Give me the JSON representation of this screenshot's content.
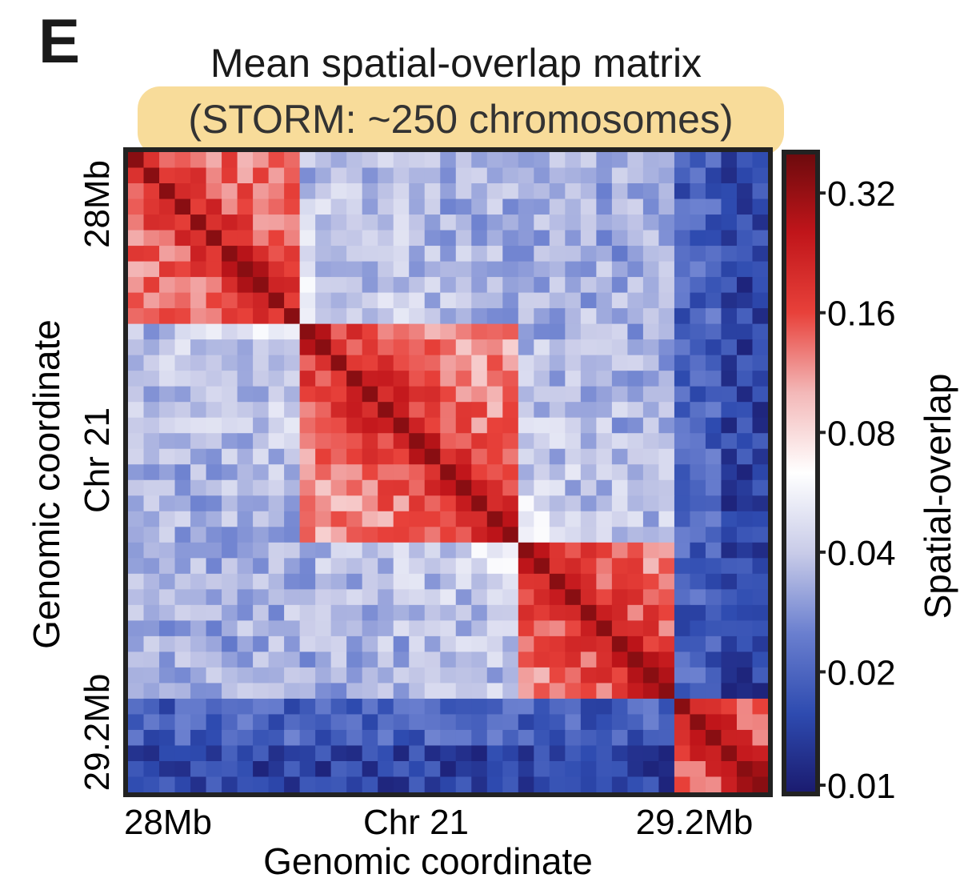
{
  "panel_label": "E",
  "chart_data": {
    "type": "heatmap",
    "title": "Mean spatial-overlap matrix",
    "subtitle": "(STORM: ~250 chromosomes)",
    "subtitle_highlight_color": "#f8dc9a",
    "xlabel": "Genomic coordinate",
    "ylabel": "Genomic coordinate",
    "x_tick_labels": [
      "28Mb",
      "Chr 21",
      "29.2Mb"
    ],
    "y_tick_labels": [
      "28Mb",
      "Chr 21",
      "29.2Mb"
    ],
    "n_bins": 41,
    "tads": [
      [
        0,
        11
      ],
      [
        11,
        25
      ],
      [
        25,
        35
      ],
      [
        35,
        41
      ]
    ],
    "colorbar": {
      "label": "Spatial-overlap",
      "scale": "log",
      "range": [
        0.01,
        0.4
      ],
      "ticks": [
        0.32,
        0.16,
        0.08,
        0.04,
        0.02,
        0.01
      ],
      "tick_labels": [
        "0.32",
        "0.16",
        "0.08",
        "0.04",
        "0.02",
        "0.01"
      ],
      "colormap": [
        "#1a1a6e",
        "#2e4bb0",
        "#6a7fcf",
        "#c8cbe8",
        "#ffffff",
        "#f3b8b8",
        "#e8413a",
        "#c0151a",
        "#6b0a0d"
      ]
    }
  }
}
